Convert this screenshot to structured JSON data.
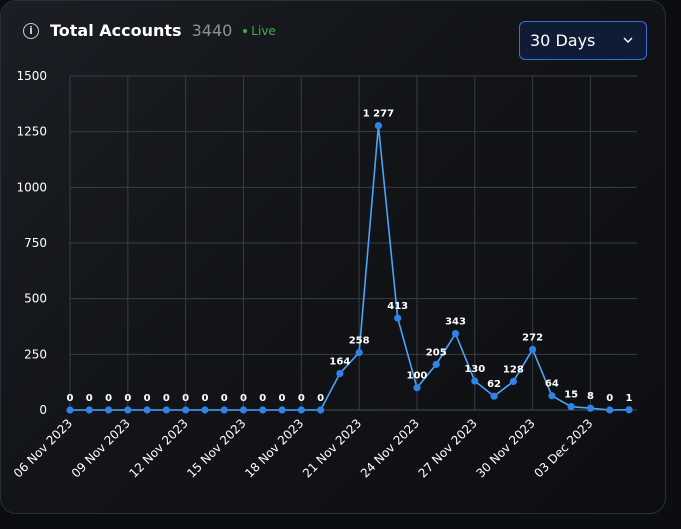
{
  "header": {
    "info_icon": "info-icon",
    "info_glyph": "i",
    "title": "Total Accounts",
    "count": "3440",
    "live_label": "Live",
    "live_color": "#3fae4f"
  },
  "range_select": {
    "value": "30 Days",
    "icon": "chevron-down-icon"
  },
  "colors": {
    "line": "#4da3f7",
    "point": "#2f82e8",
    "accent": "#3b6fd6"
  },
  "chart_data": {
    "type": "line",
    "x": [
      "06 Nov 2023",
      "07 Nov 2023",
      "08 Nov 2023",
      "09 Nov 2023",
      "10 Nov 2023",
      "11 Nov 2023",
      "12 Nov 2023",
      "13 Nov 2023",
      "14 Nov 2023",
      "15 Nov 2023",
      "16 Nov 2023",
      "17 Nov 2023",
      "18 Nov 2023",
      "19 Nov 2023",
      "20 Nov 2023",
      "21 Nov 2023",
      "22 Nov 2023",
      "23 Nov 2023",
      "24 Nov 2023",
      "25 Nov 2023",
      "26 Nov 2023",
      "27 Nov 2023",
      "28 Nov 2023",
      "29 Nov 2023",
      "30 Nov 2023",
      "01 Dec 2023",
      "02 Dec 2023",
      "03 Dec 2023",
      "04 Dec 2023",
      "05 Dec 2023"
    ],
    "values": [
      0,
      0,
      0,
      0,
      0,
      0,
      0,
      0,
      0,
      0,
      0,
      0,
      0,
      0,
      164,
      258,
      1277,
      413,
      100,
      205,
      343,
      130,
      62,
      128,
      272,
      64,
      15,
      8,
      0,
      1
    ],
    "data_labels": [
      "0",
      "0",
      "0",
      "0",
      "0",
      "0",
      "0",
      "0",
      "0",
      "0",
      "0",
      "0",
      "0",
      "0",
      "164",
      "258",
      "1 277",
      "413",
      "100",
      "205",
      "343",
      "130",
      "62",
      "128",
      "272",
      "64",
      "15",
      "8",
      "0",
      "1"
    ],
    "x_tick_labels": [
      "06 Nov 2023",
      "09 Nov 2023",
      "12 Nov 2023",
      "15 Nov 2023",
      "18 Nov 2023",
      "21 Nov 2023",
      "24 Nov 2023",
      "27 Nov 2023",
      "30 Nov 2023",
      "03 Dec 2023"
    ],
    "x_tick_every": 3,
    "y_ticks": [
      0,
      250,
      500,
      750,
      1000,
      1250,
      1500
    ],
    "ylim": [
      0,
      1500
    ],
    "grid": true,
    "title": "",
    "xlabel": "",
    "ylabel": ""
  }
}
